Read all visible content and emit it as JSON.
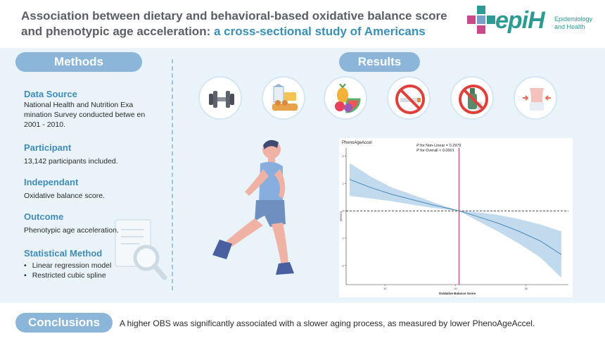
{
  "header": {
    "title_main": "Association between dietary and behavioral-based oxidative balance score and phenotypic age acceleration:",
    "title_accent": " a cross-sectional study of Americans",
    "logo_word": "epiH",
    "logo_sub_line1": "Epidemiology",
    "logo_sub_line2": "and Health"
  },
  "methods": {
    "label": "Methods",
    "data_source_head": "Data Source",
    "data_source_text": "National Health and Nutrition Exa mination Survey conducted betwe en 2001 - 2010.",
    "participant_head": "Participant",
    "participant_text": "13,142 participants included.",
    "independant_head": "Independant",
    "independant_text": "Oxidative balance score.",
    "outcome_head": "Outcome",
    "outcome_text": "Phenotypic age acceleration.",
    "statistical_head": "Statistical Method",
    "statistical_items": [
      "Linear regression model",
      "Restricted cubic spline"
    ]
  },
  "results": {
    "label": "Results",
    "icons": [
      "dumbbell-icon",
      "food-icon",
      "fruit-icon",
      "no-smoking-icon",
      "no-alcohol-icon",
      "waist-icon"
    ]
  },
  "conclusions": {
    "label": "Conclusions",
    "text": "A higher OBS was significantly associated with a slower aging process, as measured by lower PhenoAgeAccel."
  },
  "chart_data": {
    "type": "line",
    "title": "PhenoAgeAccel",
    "annotation_line1_italic": "P",
    "annotation_line1_rest": " for Non-Linear = 0.2979",
    "annotation_line2_italic": "P",
    "annotation_line2_rest": " for Overall < 0.0001",
    "xlabel": "Oxidative Balance Score",
    "ylabel": "(95%CI)",
    "x_ticks": [
      10,
      20,
      30
    ],
    "y_ticks": [
      2,
      1,
      0,
      -1,
      -2
    ],
    "xlim": [
      4.5,
      36
    ],
    "ylim": [
      -2.7,
      2.3
    ],
    "reference_x": 20.5,
    "reference_y": 0,
    "series": [
      {
        "x": [
          5,
          8,
          11,
          14,
          17,
          20.5,
          23,
          26,
          29,
          32,
          35
        ],
        "y": [
          1.15,
          0.85,
          0.6,
          0.4,
          0.2,
          0,
          -0.2,
          -0.45,
          -0.75,
          -1.1,
          -1.6
        ],
        "lower": [
          0.55,
          0.45,
          0.35,
          0.22,
          0.1,
          0,
          -0.35,
          -0.75,
          -1.2,
          -1.7,
          -2.45
        ],
        "upper": [
          1.75,
          1.25,
          0.85,
          0.58,
          0.3,
          0,
          -0.05,
          -0.15,
          -0.3,
          -0.5,
          -0.75
        ]
      }
    ],
    "colors": {
      "line": "#3a7fb4",
      "band": "#b7d3ea",
      "ref_v": "#a01f6b"
    }
  }
}
